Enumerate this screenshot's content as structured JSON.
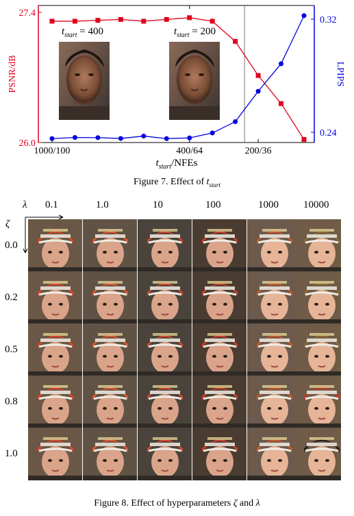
{
  "figure7": {
    "caption_prefix": "Figure 7. Effect of ",
    "caption_var": "t",
    "caption_sub": "start",
    "inset_labels": [
      {
        "var": "t",
        "sub": "start",
        "eq": " = 400"
      },
      {
        "var": "t",
        "sub": "start",
        "eq": " = 200"
      }
    ]
  },
  "chart_data": {
    "type": "line",
    "xlabel_var": "t",
    "xlabel_sub": "start",
    "xlabel_rest": "/NFEs",
    "ylabel_left": "PSNR/dB",
    "ylabel_right": "LPIPS",
    "x_tick_labels": [
      "1000/100",
      "400/64",
      "200/36"
    ],
    "y_left_ticks": [
      "26.0",
      "27.4"
    ],
    "y_right_ticks": [
      "0.24",
      "0.32"
    ],
    "ylim_left": [
      26.0,
      27.4
    ],
    "ylim_right": [
      0.235,
      0.325
    ],
    "colors": {
      "psnr": "#e0001b",
      "lpips": "#0000e0",
      "left_axis": "#e0001b",
      "right_axis": "#0000e0"
    },
    "series": [
      {
        "key": "psnr",
        "axis": "left",
        "marker": "square",
        "x": [
          1000,
          900,
          800,
          700,
          600,
          500,
          400,
          300,
          250,
          200,
          150,
          100
        ],
        "y": [
          27.33,
          27.33,
          27.34,
          27.35,
          27.33,
          27.35,
          27.37,
          27.33,
          27.1,
          26.71,
          26.39,
          25.98
        ]
      },
      {
        "key": "lpips",
        "axis": "right",
        "marker": "circle",
        "x": [
          1000,
          900,
          800,
          700,
          600,
          500,
          400,
          300,
          250,
          200,
          150,
          100
        ],
        "y": [
          0.2355,
          0.2363,
          0.2362,
          0.2356,
          0.2373,
          0.2355,
          0.236,
          0.2395,
          0.2475,
          0.269,
          0.2885,
          0.3225
        ]
      }
    ]
  },
  "figure8": {
    "caption_prefix": "Figure 8. Effect of hyperparameters ",
    "zeta": "ζ",
    "and": " and ",
    "lambda": "λ",
    "lambda_values": [
      "0.1",
      "1.0",
      "10",
      "100",
      "1000",
      "10000"
    ],
    "zeta_values": [
      "0.0",
      "0.2",
      "0.5",
      "0.8",
      "1.0"
    ]
  }
}
